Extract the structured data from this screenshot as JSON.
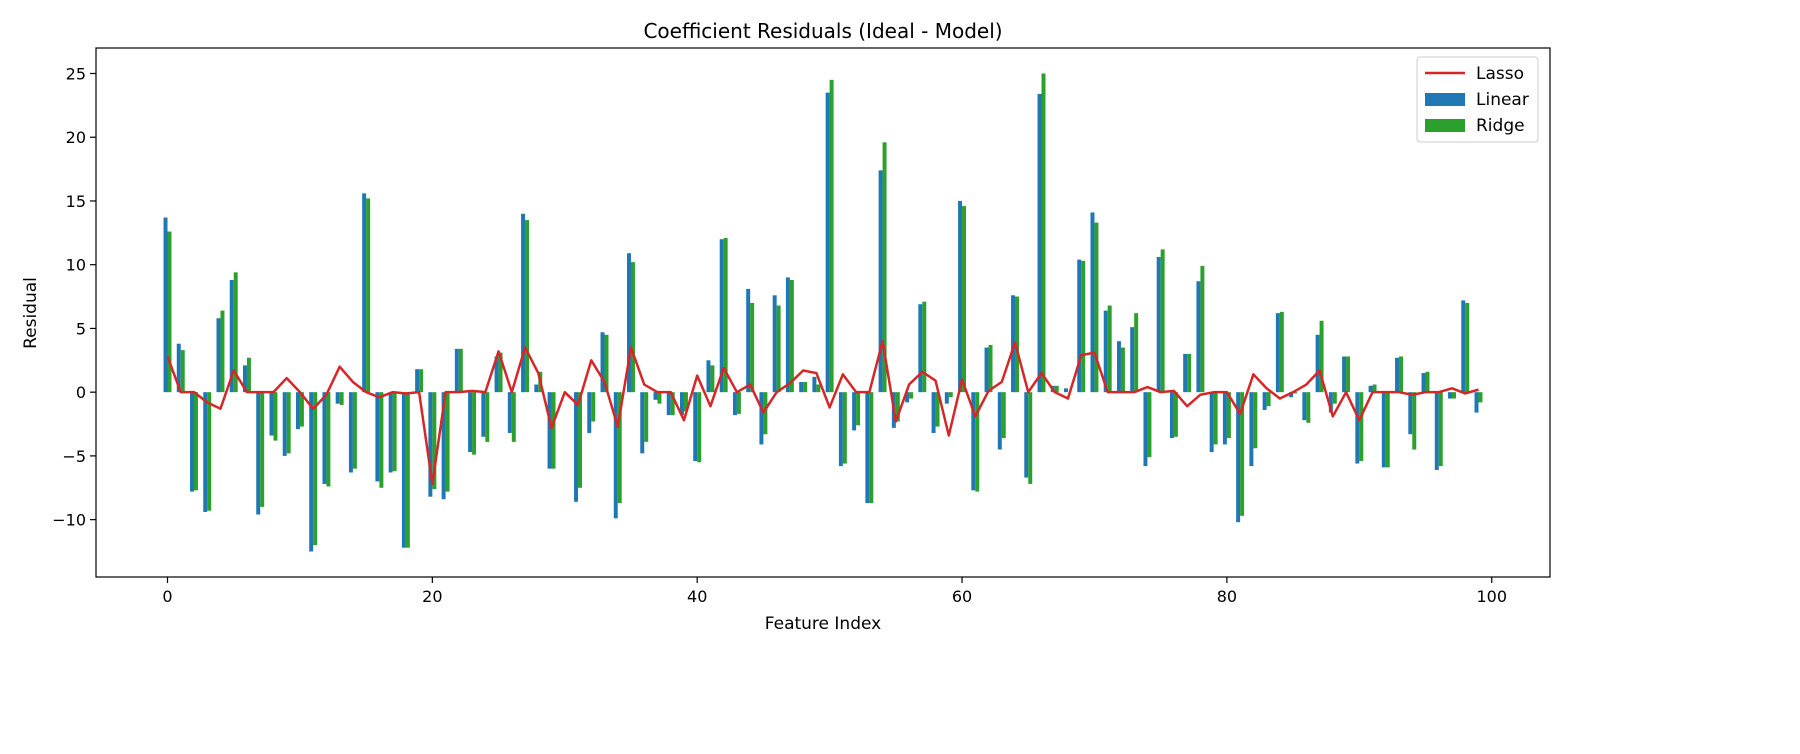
{
  "chart_data": {
    "type": "bar",
    "title": "Coefficient Residuals (Ideal - Model)",
    "xlabel": "Feature Index",
    "ylabel": "Residual",
    "xlim": [
      -5.4,
      104.4
    ],
    "ylim": [
      -14.5,
      27
    ],
    "xticks": [
      0,
      20,
      40,
      60,
      80,
      100
    ],
    "yticks": [
      -10,
      -5,
      0,
      5,
      10,
      15,
      20,
      25
    ],
    "grid": false,
    "legend_position": "top-right",
    "x": [
      0,
      1,
      2,
      3,
      4,
      5,
      6,
      7,
      8,
      9,
      10,
      11,
      12,
      13,
      14,
      15,
      16,
      17,
      18,
      19,
      20,
      21,
      22,
      23,
      24,
      25,
      26,
      27,
      28,
      29,
      30,
      31,
      32,
      33,
      34,
      35,
      36,
      37,
      38,
      39,
      40,
      41,
      42,
      43,
      44,
      45,
      46,
      47,
      48,
      49,
      50,
      51,
      52,
      53,
      54,
      55,
      56,
      57,
      58,
      59,
      60,
      61,
      62,
      63,
      64,
      65,
      66,
      67,
      68,
      69,
      70,
      71,
      72,
      73,
      74,
      75,
      76,
      77,
      78,
      79,
      80,
      81,
      82,
      83,
      84,
      85,
      86,
      87,
      88,
      89,
      90,
      91,
      92,
      93,
      94,
      95,
      96,
      97,
      98,
      99
    ],
    "series": [
      {
        "name": "Linear",
        "type": "bar",
        "color": "#1f77b4",
        "values": [
          13.7,
          3.8,
          -7.8,
          -9.4,
          5.8,
          8.8,
          2.1,
          -9.6,
          -3.4,
          -5.0,
          -2.9,
          -12.5,
          -7.2,
          -0.9,
          -6.3,
          15.6,
          -7.0,
          -6.3,
          -12.2,
          1.8,
          -8.2,
          -8.4,
          3.4,
          -4.7,
          -3.5,
          2.8,
          -3.2,
          14.0,
          0.6,
          -6.0,
          0.0,
          -8.6,
          -3.2,
          4.7,
          -9.9,
          10.9,
          -4.8,
          -0.6,
          -1.8,
          -1.8,
          -5.4,
          2.5,
          12.0,
          -1.8,
          8.1,
          -4.1,
          7.6,
          9.0,
          0.8,
          1.2,
          23.5,
          -5.8,
          -3.0,
          -8.7,
          17.4,
          -2.8,
          -0.8,
          6.9,
          -3.2,
          -0.9,
          15.0,
          -7.7,
          3.5,
          -4.5,
          7.6,
          -6.7,
          23.4,
          0.5,
          0.3,
          10.4,
          14.1,
          6.4,
          4.0,
          5.1,
          -5.8,
          10.6,
          -3.6,
          3.0,
          8.7,
          -4.7,
          -4.1,
          -10.2,
          -5.8,
          -1.4,
          6.2,
          -0.4,
          -2.2,
          4.5,
          -1.6,
          2.8,
          -5.6,
          0.5,
          -5.9,
          2.7,
          -3.3,
          1.5,
          -6.1,
          -0.5,
          7.2,
          -1.6
        ]
      },
      {
        "name": "Ridge",
        "type": "bar",
        "color": "#2ca02c",
        "values": [
          12.6,
          3.3,
          -7.7,
          -9.3,
          6.4,
          9.4,
          2.7,
          -9.0,
          -3.8,
          -4.8,
          -2.7,
          -12.0,
          -7.4,
          -1.0,
          -6.0,
          15.2,
          -7.5,
          -6.2,
          -12.2,
          1.8,
          -7.6,
          -7.8,
          3.4,
          -4.9,
          -3.9,
          3.1,
          -3.9,
          13.5,
          1.6,
          -6.0,
          0.0,
          -7.5,
          -2.3,
          4.5,
          -8.7,
          10.2,
          -3.9,
          -0.9,
          -1.8,
          -1.5,
          -5.5,
          2.1,
          12.1,
          -1.7,
          7.0,
          -3.3,
          6.8,
          8.8,
          0.8,
          0.6,
          24.5,
          -5.6,
          -2.6,
          -8.7,
          19.6,
          -2.3,
          -0.5,
          7.1,
          -2.7,
          -0.4,
          14.6,
          -7.8,
          3.7,
          -3.6,
          7.5,
          -7.2,
          25.0,
          0.5,
          0.0,
          10.3,
          13.3,
          6.8,
          3.5,
          6.2,
          -5.1,
          11.2,
          -3.5,
          3.0,
          9.9,
          -4.1,
          -3.6,
          -9.7,
          -4.4,
          -1.1,
          6.3,
          -0.1,
          -2.4,
          5.6,
          -0.9,
          2.8,
          -5.4,
          0.6,
          -5.9,
          2.8,
          -4.5,
          1.6,
          -5.8,
          -0.5,
          7.0,
          -0.8
        ]
      },
      {
        "name": "Lasso",
        "type": "line",
        "color": "#d62728",
        "values": [
          2.8,
          0,
          0,
          -0.8,
          -1.3,
          1.7,
          0,
          0,
          0,
          1.1,
          0,
          -1.3,
          -0.2,
          2.0,
          0.8,
          0,
          -0.4,
          0,
          -0.1,
          0,
          -7.2,
          0,
          0,
          0.1,
          0,
          3.2,
          0,
          3.5,
          1.5,
          -2.8,
          0,
          -1.0,
          2.5,
          0.8,
          -2.7,
          3.5,
          0.6,
          0,
          0,
          -2.2,
          1.3,
          -1.1,
          1.9,
          0,
          0.6,
          -1.6,
          0,
          0.7,
          1.7,
          1.5,
          -1.2,
          1.4,
          0,
          0,
          4.0,
          -2.3,
          0.6,
          1.6,
          0.9,
          -3.4,
          1.0,
          -1.9,
          0.1,
          0.8,
          3.9,
          0,
          1.5,
          0,
          -0.5,
          2.9,
          3.1,
          0,
          0,
          0,
          0.4,
          0,
          0.1,
          -1.1,
          -0.2,
          0,
          0,
          -1.7,
          1.4,
          0.3,
          -0.5,
          0,
          0.6,
          1.7,
          -1.9,
          0,
          -2.2,
          0,
          0,
          0,
          -0.2,
          0,
          0,
          0.3,
          -0.1,
          0.2
        ]
      }
    ]
  }
}
